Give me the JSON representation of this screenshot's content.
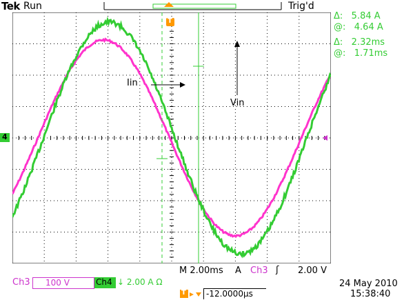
{
  "header": {
    "brand": "Tek",
    "status": "Run",
    "trigger_status": "Trig'd"
  },
  "cursor_readout": {
    "delta_current": "Δ:   5.84 A",
    "at_current": "@:   4.64 A",
    "delta_time": "Δ:   2.32ms",
    "at_time": "@:   1.71ms"
  },
  "annotations": {
    "current_label": "Iin",
    "voltage_label": "Vin"
  },
  "markers": {
    "channel_ground": "4",
    "trigger_marker": "T"
  },
  "bottom": {
    "timebase": "M 2.00ms",
    "trigger_mode": "A",
    "trigger_source": "Ch3",
    "trigger_slope": "ʃ",
    "trigger_level": "2.00 V",
    "ch3_label": "Ch3",
    "ch3_scale": "100 V",
    "ch4_label": "Ch4",
    "ch4_scale": "↓ 2.00 A Ω",
    "date": "24 May 2010",
    "time": "15:38:40",
    "trigger_offset_icon": "T▸▼",
    "trigger_offset": "-12.0000µs"
  },
  "colors": {
    "ch3": "#ff33cc",
    "ch4": "#33cc33",
    "grid": "#000000",
    "readout": "#33cc33"
  }
}
